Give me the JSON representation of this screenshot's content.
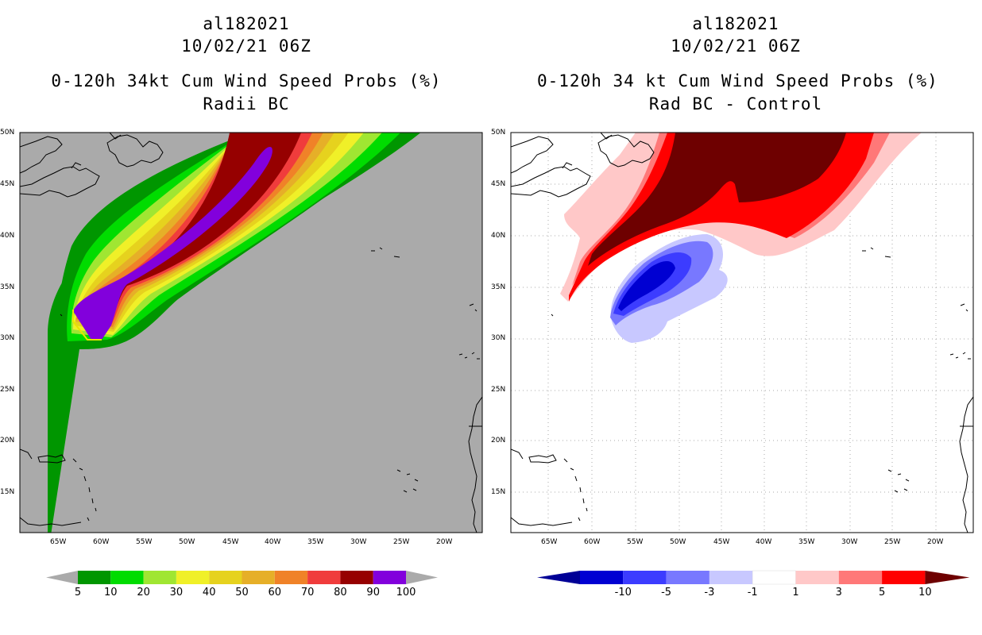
{
  "left_panel": {
    "title_lines": [
      "al182021",
      "10/02/21 06Z",
      "0-120h 34kt Cum Wind Speed Probs (%)",
      "Radii BC"
    ],
    "lat_labels": [
      "50N",
      "45N",
      "40N",
      "35N",
      "30N",
      "25N",
      "20N",
      "15N"
    ],
    "lon_labels": [
      "65W",
      "60W",
      "55W",
      "50W",
      "45W",
      "40W",
      "35W",
      "30W",
      "25W",
      "20W"
    ],
    "colorbar": {
      "colors": [
        "#009600",
        "#00dc00",
        "#a0e632",
        "#f0f028",
        "#e6d21e",
        "#e6af28",
        "#f08228",
        "#f03c3c",
        "#960000",
        "#8200dc"
      ],
      "labels": [
        "5",
        "10",
        "20",
        "30",
        "40",
        "50",
        "60",
        "70",
        "80",
        "90",
        "100"
      ],
      "end_color": "#aaaaaa"
    }
  },
  "right_panel": {
    "title_lines": [
      "al182021",
      "10/02/21 06Z",
      "0-120h 34 kt Cum Wind Speed Probs (%)",
      "Rad BC - Control"
    ],
    "lat_labels": [
      "50N",
      "45N",
      "40N",
      "35N",
      "30N",
      "25N",
      "20N",
      "15N"
    ],
    "lon_labels": [
      "65W",
      "60W",
      "55W",
      "50W",
      "45W",
      "40W",
      "35W",
      "30W",
      "25W",
      "20W"
    ],
    "colorbar": {
      "colors": [
        "#0000d2",
        "#3c3cff",
        "#7878ff",
        "#c8c8ff",
        "#ffffff",
        "#ffc8c8",
        "#ff7878",
        "#ff0000"
      ],
      "labels": [
        "-10",
        "-5",
        "-3",
        "-1",
        "1",
        "3",
        "5",
        "10"
      ],
      "left_end_color": "#000096",
      "right_end_color": "#6e0000"
    }
  },
  "colors": {
    "ocean_left": "#aaaaaa",
    "ocean_right": "#ffffff"
  }
}
